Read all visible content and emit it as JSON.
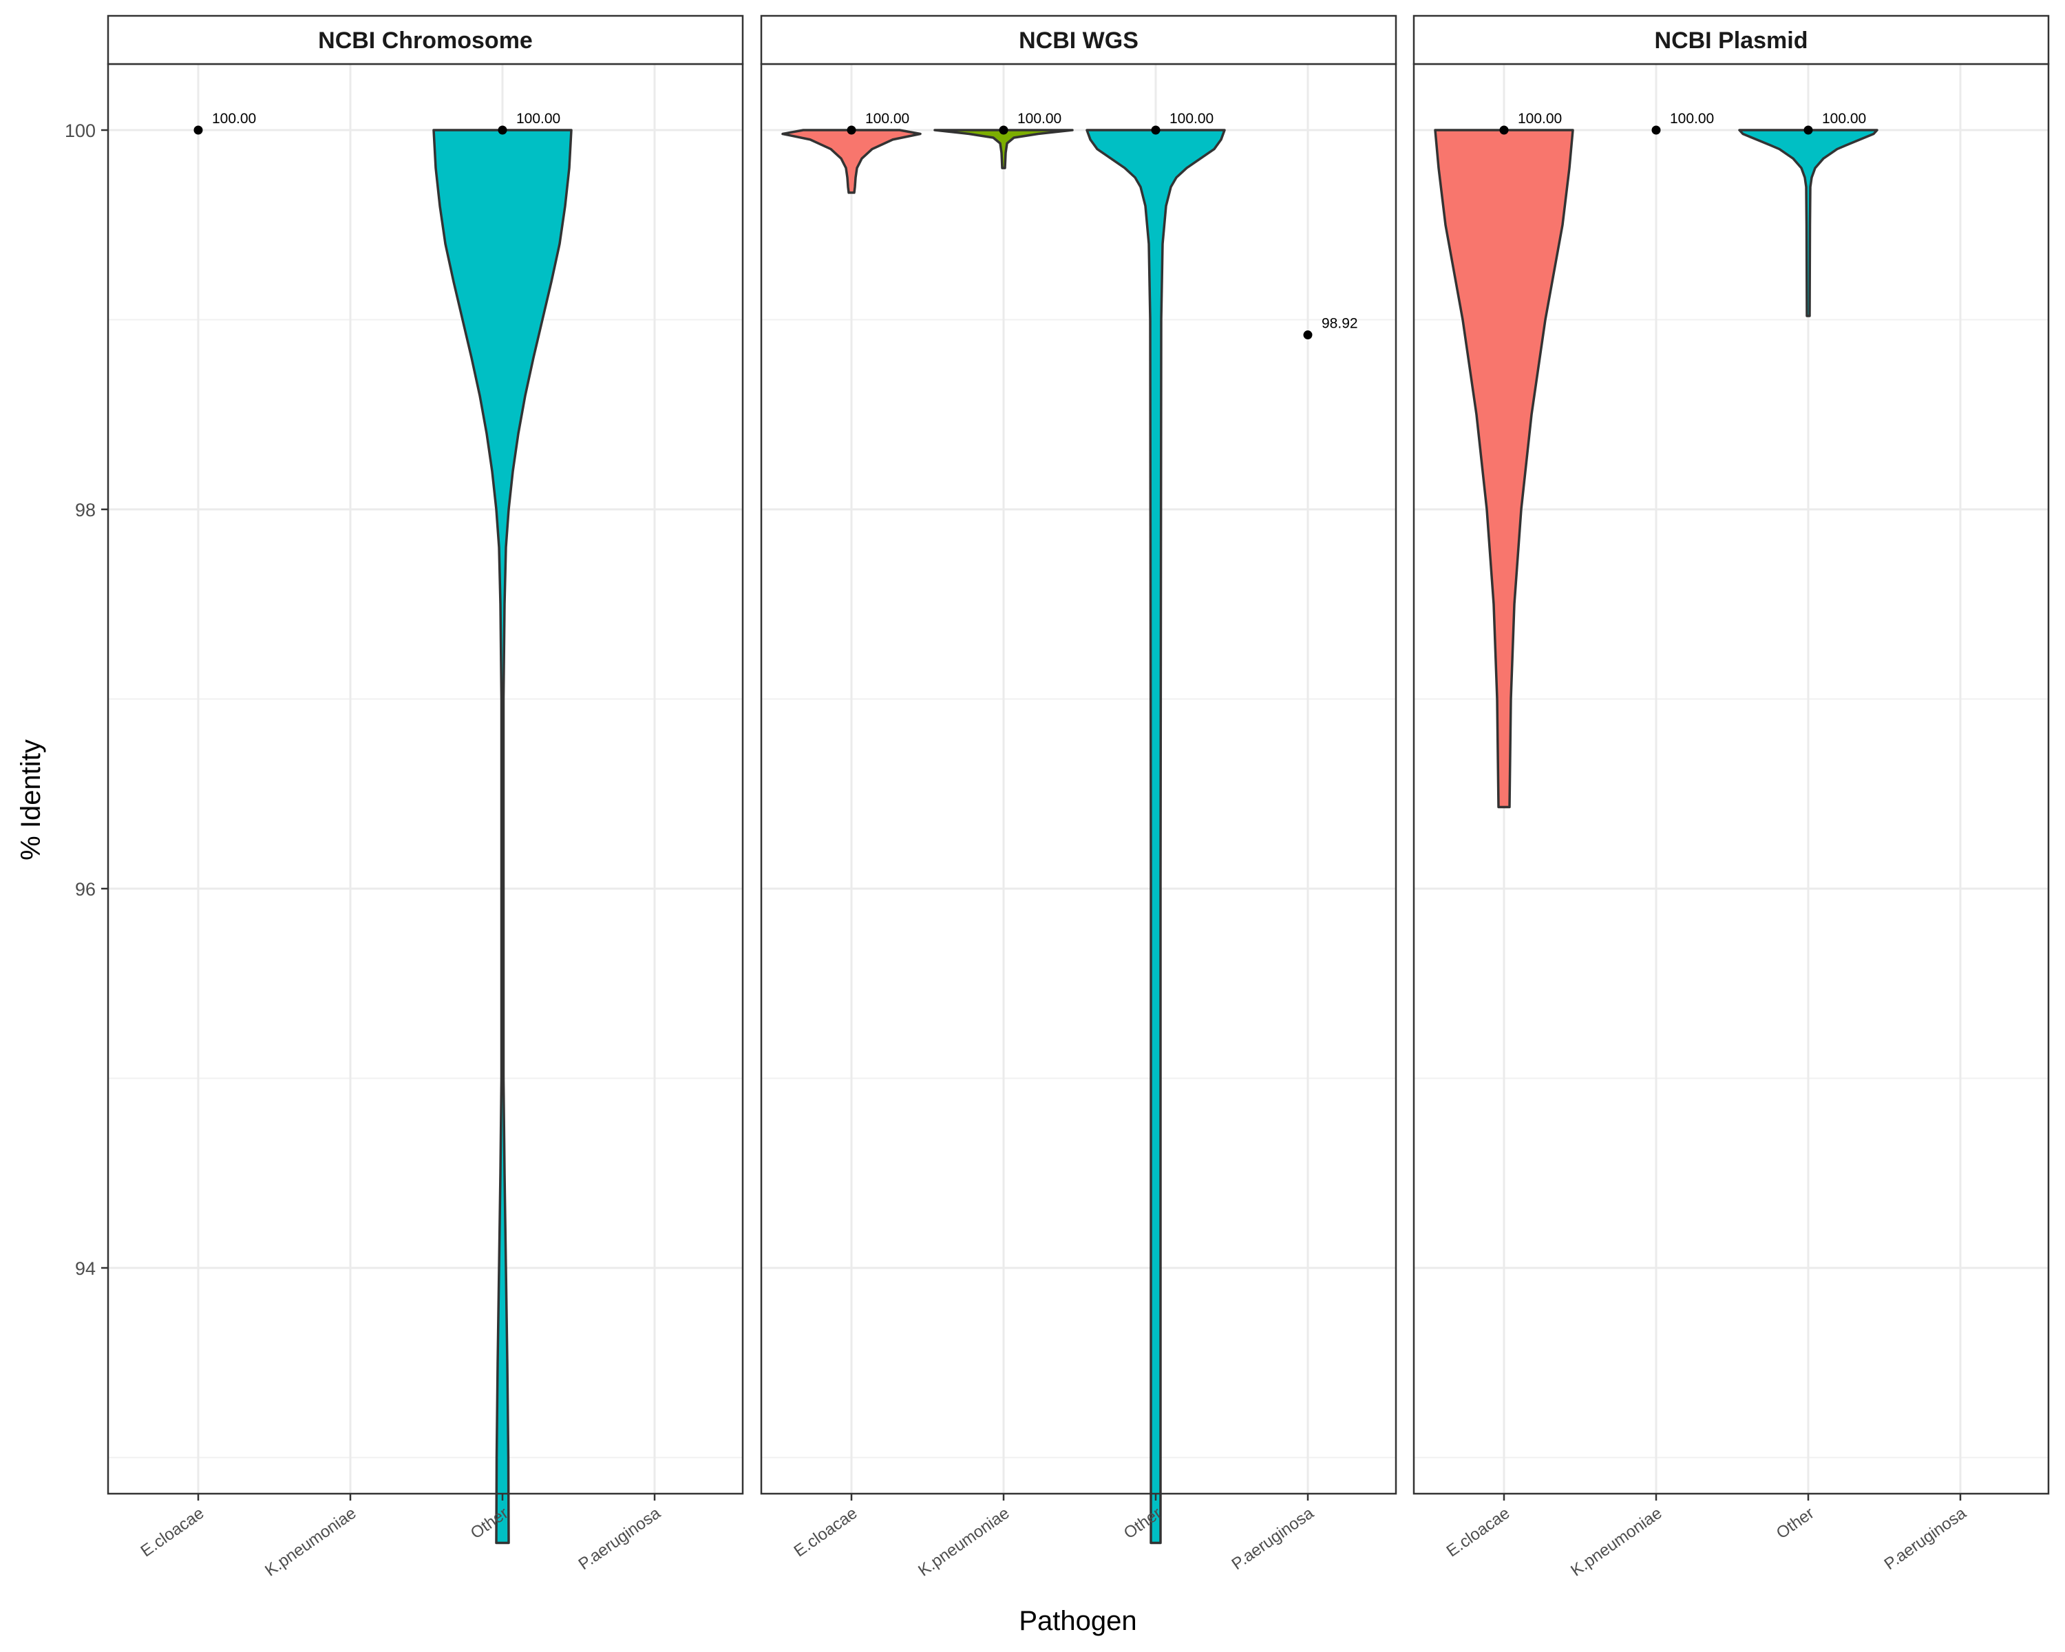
{
  "chart_data": {
    "type": "violin",
    "xlabel": "Pathogen",
    "ylabel": "% Identity",
    "categories": [
      "E.cloacae",
      "K.pneumoniae",
      "Other",
      "P.aeruginosa"
    ],
    "y_ticks": [
      94,
      96,
      98,
      100
    ],
    "ylim": [
      92.2,
      100.35
    ],
    "grid": true,
    "colors": {
      "E.cloacae": "#F8766D",
      "K.pneumoniae": "#7CAE00",
      "Other": "#00BFC4",
      "outline": "#333333"
    },
    "panels": [
      {
        "title": "NCBI Chromosome",
        "series": [
          {
            "category": "E.cloacae",
            "min": 100,
            "max": 100,
            "median": 100,
            "label": "100.00"
          },
          {
            "category": "Other",
            "min": 92.55,
            "max": 100,
            "median": 100,
            "label": "100.00",
            "violin_shape": [
              {
                "y": 100.0,
                "w": 1.0
              },
              {
                "y": 99.8,
                "w": 0.97
              },
              {
                "y": 99.6,
                "w": 0.91
              },
              {
                "y": 99.4,
                "w": 0.83
              },
              {
                "y": 99.2,
                "w": 0.71
              },
              {
                "y": 99.0,
                "w": 0.58
              },
              {
                "y": 98.8,
                "w": 0.45
              },
              {
                "y": 98.6,
                "w": 0.33
              },
              {
                "y": 98.4,
                "w": 0.23
              },
              {
                "y": 98.2,
                "w": 0.15
              },
              {
                "y": 98.0,
                "w": 0.09
              },
              {
                "y": 97.8,
                "w": 0.05
              },
              {
                "y": 97.5,
                "w": 0.03
              },
              {
                "y": 97.0,
                "w": 0.015
              },
              {
                "y": 96.0,
                "w": 0.012
              },
              {
                "y": 95.0,
                "w": 0.015
              },
              {
                "y": 94.5,
                "w": 0.03
              },
              {
                "y": 94.0,
                "w": 0.05
              },
              {
                "y": 93.5,
                "w": 0.07
              },
              {
                "y": 93.0,
                "w": 0.085
              },
              {
                "y": 92.55,
                "w": 0.09
              }
            ]
          }
        ]
      },
      {
        "title": "NCBI WGS",
        "series": [
          {
            "category": "E.cloacae",
            "min": 99.67,
            "max": 100,
            "median": 100,
            "label": "100.00",
            "violin_shape": [
              {
                "y": 100.0,
                "w": 0.7
              },
              {
                "y": 99.98,
                "w": 1.0
              },
              {
                "y": 99.95,
                "w": 0.6
              },
              {
                "y": 99.9,
                "w": 0.3
              },
              {
                "y": 99.85,
                "w": 0.15
              },
              {
                "y": 99.8,
                "w": 0.08
              },
              {
                "y": 99.75,
                "w": 0.06
              },
              {
                "y": 99.7,
                "w": 0.05
              },
              {
                "y": 99.67,
                "w": 0.04
              }
            ]
          },
          {
            "category": "K.pneumoniae",
            "min": 99.8,
            "max": 100,
            "median": 100,
            "label": "100.00",
            "violin_shape": [
              {
                "y": 100.0,
                "w": 1.0
              },
              {
                "y": 99.98,
                "w": 0.5
              },
              {
                "y": 99.96,
                "w": 0.15
              },
              {
                "y": 99.93,
                "w": 0.05
              },
              {
                "y": 99.88,
                "w": 0.03
              },
              {
                "y": 99.8,
                "w": 0.02
              }
            ]
          },
          {
            "category": "Other",
            "min": 92.55,
            "max": 100,
            "median": 100,
            "label": "100.00",
            "violin_shape": [
              {
                "y": 100.0,
                "w": 1.0
              },
              {
                "y": 99.95,
                "w": 0.95
              },
              {
                "y": 99.9,
                "w": 0.85
              },
              {
                "y": 99.85,
                "w": 0.65
              },
              {
                "y": 99.8,
                "w": 0.45
              },
              {
                "y": 99.75,
                "w": 0.3
              },
              {
                "y": 99.7,
                "w": 0.22
              },
              {
                "y": 99.6,
                "w": 0.15
              },
              {
                "y": 99.4,
                "w": 0.1
              },
              {
                "y": 99.0,
                "w": 0.08
              },
              {
                "y": 96.0,
                "w": 0.07
              },
              {
                "y": 92.55,
                "w": 0.07
              }
            ]
          },
          {
            "category": "P.aeruginosa",
            "min": 98.92,
            "max": 98.92,
            "median": 98.92,
            "label": "98.92"
          }
        ]
      },
      {
        "title": "NCBI Plasmid",
        "series": [
          {
            "category": "E.cloacae",
            "min": 96.43,
            "max": 100,
            "median": 100,
            "label": "100.00",
            "violin_shape": [
              {
                "y": 100.0,
                "w": 1.0
              },
              {
                "y": 99.8,
                "w": 0.95
              },
              {
                "y": 99.5,
                "w": 0.85
              },
              {
                "y": 99.2,
                "w": 0.7
              },
              {
                "y": 99.0,
                "w": 0.6
              },
              {
                "y": 98.5,
                "w": 0.4
              },
              {
                "y": 98.0,
                "w": 0.25
              },
              {
                "y": 97.5,
                "w": 0.15
              },
              {
                "y": 97.0,
                "w": 0.1
              },
              {
                "y": 96.43,
                "w": 0.08
              }
            ]
          },
          {
            "category": "K.pneumoniae",
            "min": 100,
            "max": 100,
            "median": 100,
            "label": "100.00"
          },
          {
            "category": "Other",
            "min": 99.02,
            "max": 100,
            "median": 100,
            "label": "100.00",
            "violin_shape": [
              {
                "y": 100.0,
                "w": 1.0
              },
              {
                "y": 99.98,
                "w": 0.95
              },
              {
                "y": 99.95,
                "w": 0.75
              },
              {
                "y": 99.92,
                "w": 0.55
              },
              {
                "y": 99.9,
                "w": 0.42
              },
              {
                "y": 99.85,
                "w": 0.22
              },
              {
                "y": 99.8,
                "w": 0.1
              },
              {
                "y": 99.75,
                "w": 0.05
              },
              {
                "y": 99.7,
                "w": 0.03
              },
              {
                "y": 99.5,
                "w": 0.025
              },
              {
                "y": 99.02,
                "w": 0.02
              }
            ]
          }
        ]
      }
    ]
  }
}
